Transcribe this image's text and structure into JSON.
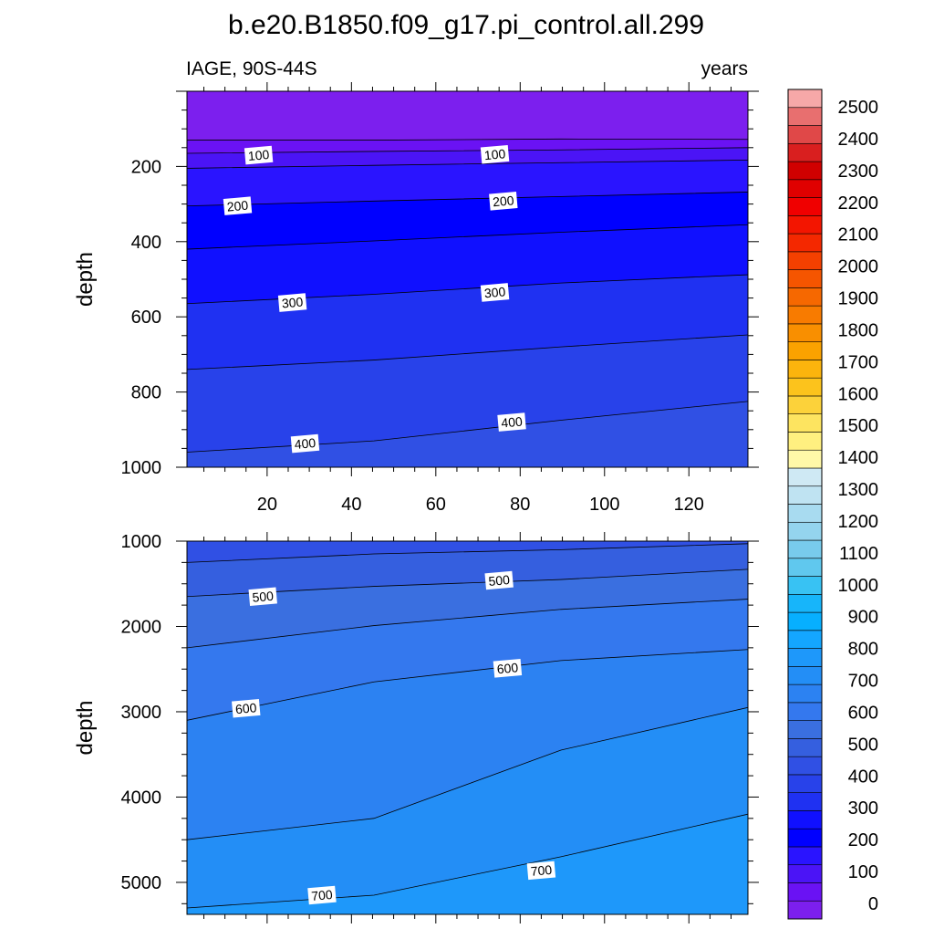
{
  "title": "b.e20.B1850.f09_g17.pi_control.all.299",
  "left_subtitle": "IAGE, 90S-44S",
  "right_subtitle": "years",
  "chart_data": [
    {
      "type": "contour",
      "panel": "upper",
      "variable": "IAGE",
      "region": "90S-44S",
      "units": "years",
      "xlabel": "",
      "ylabel": "depth",
      "xlim": [
        1,
        134
      ],
      "ylim": [
        1000,
        0
      ],
      "xticks": [
        20,
        40,
        60,
        80,
        100,
        120
      ],
      "yticks": [
        200,
        400,
        600,
        800,
        1000
      ],
      "contour_interval": 50,
      "contours": [
        {
          "level": 50,
          "depth": [
            130,
            130,
            127,
            128
          ]
        },
        {
          "level": 100,
          "depth": [
            165,
            160,
            156,
            150
          ]
        },
        {
          "level": 150,
          "depth": [
            205,
            197,
            190,
            183
          ]
        },
        {
          "level": 200,
          "depth": [
            305,
            292,
            280,
            268
          ]
        },
        {
          "level": 250,
          "depth": [
            420,
            398,
            375,
            355
          ]
        },
        {
          "level": 300,
          "depth": [
            565,
            540,
            510,
            488
          ]
        },
        {
          "level": 350,
          "depth": [
            740,
            715,
            680,
            648
          ]
        },
        {
          "level": 400,
          "depth": [
            960,
            930,
            875,
            825
          ]
        }
      ],
      "contour_labels": [
        {
          "level": 100,
          "x": 18,
          "depth": 170
        },
        {
          "level": 100,
          "x": 74,
          "depth": 168
        },
        {
          "level": 200,
          "x": 13,
          "depth": 305
        },
        {
          "level": 200,
          "x": 76,
          "depth": 292
        },
        {
          "level": 300,
          "x": 26,
          "depth": 562
        },
        {
          "level": 300,
          "x": 74,
          "depth": 535
        },
        {
          "level": 400,
          "x": 29,
          "depth": 937
        },
        {
          "level": 400,
          "x": 78,
          "depth": 880
        }
      ]
    },
    {
      "type": "contour",
      "panel": "lower",
      "variable": "IAGE",
      "region": "90S-44S",
      "units": "years",
      "xlabel": "",
      "ylabel": "depth",
      "xlim": [
        1,
        134
      ],
      "ylim": [
        5375,
        1000
      ],
      "xticks": [
        20,
        40,
        60,
        80,
        100,
        120
      ],
      "yticks": [
        1000,
        2000,
        3000,
        4000,
        5000
      ],
      "contour_interval": 50,
      "contours": [
        {
          "level": 450,
          "depth": [
            1250,
            1150,
            1100,
            1030
          ]
        },
        {
          "level": 500,
          "depth": [
            1650,
            1530,
            1450,
            1330
          ]
        },
        {
          "level": 550,
          "depth": [
            2250,
            1990,
            1800,
            1680
          ]
        },
        {
          "level": 600,
          "depth": [
            3100,
            2650,
            2400,
            2270
          ]
        },
        {
          "level": 650,
          "depth": [
            4500,
            4250,
            3450,
            2950
          ]
        },
        {
          "level": 700,
          "depth": [
            5300,
            5150,
            4700,
            4200
          ]
        }
      ],
      "contour_labels": [
        {
          "level": 500,
          "x": 19,
          "depth": 1650
        },
        {
          "level": 500,
          "x": 75,
          "depth": 1460
        },
        {
          "level": 600,
          "x": 15,
          "depth": 2960
        },
        {
          "level": 600,
          "x": 77,
          "depth": 2490
        },
        {
          "level": 700,
          "x": 33,
          "depth": 5150
        },
        {
          "level": 700,
          "x": 85,
          "depth": 4860
        }
      ]
    }
  ],
  "colorbar": {
    "labels": [
      "0",
      "100",
      "200",
      "300",
      "400",
      "500",
      "600",
      "700",
      "800",
      "900",
      "1000",
      "1100",
      "1200",
      "1300",
      "1400",
      "1500",
      "1600",
      "1700",
      "1800",
      "1900",
      "2000",
      "2100",
      "2200",
      "2300",
      "2400",
      "2500"
    ],
    "colors": [
      "#7c1fee",
      "#6a12f4",
      "#4b14f6",
      "#2a14ff",
      "#0000ff",
      "#1010ff",
      "#1f31f2",
      "#2842ea",
      "#3050e4",
      "#355fdf",
      "#3a6fe0",
      "#3478ee",
      "#2c82f2",
      "#238ef6",
      "#1e98fa",
      "#14a6ff",
      "#07afff",
      "#17b5fa",
      "#38c2f3",
      "#60c8ee",
      "#78cbec",
      "#94d4ee",
      "#a8dbf0",
      "#bfe3f2",
      "#cfe9f4",
      "#fff8a8",
      "#fff080",
      "#fde460",
      "#fcd23a",
      "#fcc31c",
      "#fbb40d",
      "#faa200",
      "#f98f00",
      "#f87b00",
      "#f66800",
      "#f55500",
      "#f44000",
      "#f42800",
      "#f31500",
      "#f00000",
      "#e00000",
      "#d00000",
      "#d91f1f",
      "#e04848",
      "#e86f6f",
      "#f6a8a8"
    ]
  }
}
